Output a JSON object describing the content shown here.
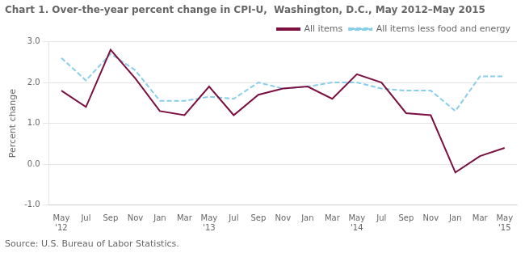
{
  "chart_data": {
    "type": "line",
    "title": "Chart 1. Over-the-year percent change in CPI-U,  Washington, D.C., May 2012–May 2015",
    "ylabel": "Percent change",
    "source": "Source: U.S. Bureau of Labor Statistics.",
    "categories": [
      "May\n'12",
      "Jul",
      "Sep",
      "Nov",
      "Jan",
      "Mar",
      "May\n'13",
      "Jul",
      "Sep",
      "Nov",
      "Jan",
      "Mar",
      "May\n'14",
      "Jul",
      "Sep",
      "Nov",
      "Jan",
      "Mar",
      "May\n'15"
    ],
    "series": [
      {
        "name": "All items",
        "color": "#7B1040",
        "line_style": "solid",
        "values": [
          1.8,
          1.4,
          2.8,
          2.1,
          1.3,
          1.2,
          1.9,
          1.2,
          1.7,
          1.85,
          1.9,
          1.6,
          2.2,
          2.0,
          1.25,
          1.2,
          -0.2,
          0.2,
          0.4
        ]
      },
      {
        "name": "All items less food and energy",
        "color": "#87CEEB",
        "line_style": "dashed",
        "values": [
          2.6,
          2.05,
          2.7,
          2.3,
          1.55,
          1.55,
          1.65,
          1.6,
          2.0,
          1.85,
          1.9,
          2.0,
          2.0,
          1.85,
          1.8,
          1.8,
          1.3,
          2.15,
          2.15
        ]
      }
    ],
    "ylim": [
      -1.0,
      3.0
    ],
    "yticks": [
      {
        "value": -1.0,
        "label": "-1.0"
      },
      {
        "value": 0.0,
        "label": "0.0"
      },
      {
        "value": 1.0,
        "label": "1.0"
      },
      {
        "value": 2.0,
        "label": "2.0"
      },
      {
        "value": 3.0,
        "label": "3.0"
      }
    ],
    "grid": "y",
    "legend": "upper right"
  }
}
